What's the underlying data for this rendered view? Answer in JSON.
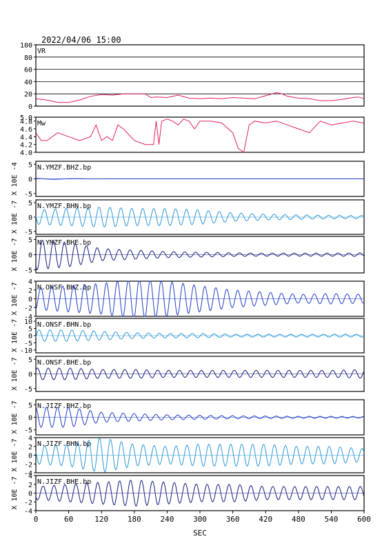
{
  "header": {
    "datetime": "2022/04/06 15:00"
  },
  "colors": {
    "vr": "#e0205a",
    "mw": "#e0205a",
    "dark_blue": "#101a7a",
    "mid_blue": "#1e3cc8",
    "light_blue": "#2a96d8"
  },
  "chart_data": {
    "type": "line",
    "xlabel": "SEC",
    "xlim": [
      0,
      600
    ],
    "xticks": [
      "0",
      "60",
      "120",
      "180",
      "240",
      "300",
      "360",
      "420",
      "480",
      "540",
      "600"
    ],
    "panels": [
      {
        "id": "vr",
        "name": "VR",
        "ylim": [
          0,
          100
        ],
        "ytick_labels": [
          "100",
          "80",
          "60",
          "40",
          "20",
          "0"
        ],
        "color_key": "vr",
        "x": [
          0,
          20,
          40,
          60,
          80,
          100,
          120,
          140,
          160,
          180,
          200,
          210,
          220,
          240,
          260,
          280,
          300,
          320,
          340,
          360,
          380,
          400,
          420,
          440,
          450,
          460,
          480,
          500,
          520,
          540,
          560,
          580,
          590,
          600
        ],
        "y": [
          12,
          10,
          6,
          6,
          10,
          16,
          19,
          18,
          20,
          20,
          20,
          14,
          15,
          14,
          18,
          13,
          12,
          13,
          12,
          14,
          13,
          12,
          17,
          22,
          20,
          16,
          13,
          12,
          9,
          9,
          11,
          14,
          15,
          12
        ]
      },
      {
        "id": "mw",
        "name": "Mw",
        "ylim": [
          4.0,
          4.9
        ],
        "ytick_labels": [
          "5.0",
          "4.8",
          "4.6",
          "4.4",
          "4.2",
          "4.0"
        ],
        "color_key": "mw",
        "x": [
          0,
          10,
          20,
          40,
          60,
          80,
          100,
          110,
          120,
          130,
          140,
          150,
          160,
          180,
          200,
          215,
          220,
          225,
          230,
          240,
          250,
          260,
          270,
          280,
          290,
          300,
          320,
          340,
          360,
          370,
          380,
          390,
          400,
          420,
          440,
          460,
          480,
          500,
          520,
          540,
          560,
          580,
          600
        ],
        "y": [
          4.5,
          4.3,
          4.3,
          4.5,
          4.4,
          4.3,
          4.4,
          4.7,
          4.3,
          4.4,
          4.3,
          4.7,
          4.6,
          4.3,
          4.2,
          4.2,
          4.8,
          4.2,
          4.8,
          4.85,
          4.8,
          4.7,
          4.85,
          4.8,
          4.6,
          4.8,
          4.8,
          4.75,
          4.5,
          4.1,
          4.0,
          4.7,
          4.8,
          4.75,
          4.8,
          4.7,
          4.6,
          4.5,
          4.8,
          4.7,
          4.75,
          4.8,
          4.75
        ]
      },
      {
        "id": "ymzf-bhz",
        "name": "N.YMZF.BHZ.bp",
        "ylabel": "X 10E -4",
        "ylim": [
          -6,
          6
        ],
        "ytick_labels": [
          "5",
          "0",
          "-5"
        ],
        "color_key": "mid_blue",
        "period": 80,
        "amplitude_profile": [
          0.2,
          0.1,
          0,
          0,
          0,
          0,
          0,
          0,
          0,
          0,
          0
        ]
      },
      {
        "id": "ymzf-bhn",
        "name": "N.YMZF.BHN.bp",
        "ylabel": "X 10E -7",
        "ylim": [
          -6,
          6
        ],
        "ytick_labels": [
          "5",
          "0",
          "-5"
        ],
        "color_key": "light_blue",
        "period": 20,
        "amplitude_profile": [
          2.5,
          3,
          3.5,
          3,
          3,
          2.5,
          1.5,
          1,
          0.8,
          0.6,
          0.5
        ]
      },
      {
        "id": "ymzf-bhe",
        "name": "N.YMZF.BHE.bp",
        "ylabel": "X 10E -7",
        "ylim": [
          -6,
          6
        ],
        "ytick_labels": [
          "5",
          "0",
          "-5"
        ],
        "color_key": "dark_blue",
        "period": 20,
        "amplitude_profile": [
          5,
          4,
          2,
          1.5,
          1,
          0.8,
          0.6,
          0.5,
          0.5,
          0.5,
          0.6
        ]
      },
      {
        "id": "onsf-bhz",
        "name": "N.ONSF.BHZ.bp",
        "ylabel": "X 10E -7",
        "ylim": [
          -4,
          4
        ],
        "ytick_labels": [
          "4",
          "2",
          "0",
          "-2",
          "-4"
        ],
        "color_key": "mid_blue",
        "period": 20,
        "amplitude_profile": [
          2.5,
          3,
          3.5,
          4.5,
          4,
          3,
          2,
          1.5,
          1,
          1.2,
          1
        ]
      },
      {
        "id": "onsf-bhn",
        "name": "N.ONSF.BHN.bp",
        "ylabel": "X 10E -7",
        "ylim": [
          -12,
          12
        ],
        "ytick_labels": [
          "10",
          "5",
          "0",
          "-5",
          "-10"
        ],
        "color_key": "light_blue",
        "period": 20,
        "amplitude_profile": [
          4,
          4,
          3,
          2,
          1.5,
          1.5,
          1,
          1,
          1,
          1,
          1
        ]
      },
      {
        "id": "onsf-bhe",
        "name": "N.ONSF.BHE.bp",
        "ylabel": "X 10E -7",
        "ylim": [
          -6,
          6
        ],
        "ytick_labels": [
          "5",
          "0",
          "-5"
        ],
        "color_key": "dark_blue",
        "period": 20,
        "amplitude_profile": [
          2,
          2,
          1.5,
          1.5,
          1.2,
          1.2,
          1.2,
          1.2,
          1.2,
          1.2,
          1.5
        ]
      },
      {
        "id": "jizf-bhz",
        "name": "N.JIZF.BHZ.bp",
        "ylabel": "X 10E -7",
        "ylim": [
          -7,
          7
        ],
        "ytick_labels": [
          "5",
          "0",
          "-5"
        ],
        "color_key": "mid_blue",
        "period": 20,
        "amplitude_profile": [
          4,
          4,
          2,
          1.5,
          1,
          0.8,
          0.6,
          0.5,
          0.4,
          0.4,
          0.3
        ]
      },
      {
        "id": "jizf-bhn",
        "name": "N.JIZF.BHN.bp",
        "ylabel": "X 10E -7",
        "ylim": [
          -4,
          4
        ],
        "ytick_labels": [
          "4",
          "2",
          "0",
          "-2",
          "-4"
        ],
        "color_key": "light_blue",
        "period": 20,
        "amplitude_profile": [
          2,
          2.5,
          4,
          2.5,
          2,
          2.5,
          2.5,
          2.5,
          2,
          2,
          1.5
        ]
      },
      {
        "id": "jizf-bhe",
        "name": "N.JIZF.BHE.bp",
        "ylabel": "X 10E -7",
        "ylim": [
          -4,
          4
        ],
        "ytick_labels": [
          "4",
          "2",
          "0",
          "-2",
          "-4"
        ],
        "color_key": "dark_blue",
        "period": 20,
        "amplitude_profile": [
          1.5,
          2,
          2.5,
          3,
          2.5,
          2,
          2,
          1.5,
          1.5,
          1.5,
          1.5
        ]
      }
    ]
  }
}
